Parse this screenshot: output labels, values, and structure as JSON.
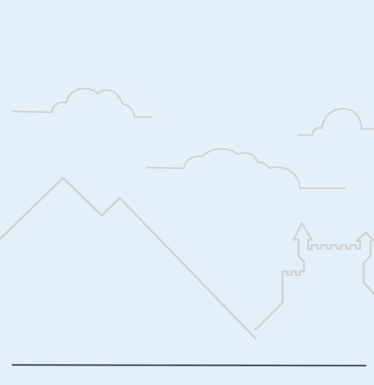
{
  "scene": {
    "background": "#e4f0f9",
    "outline_color": "#d3d3d3",
    "ground_color": "#4a5560",
    "elements": [
      "cloud-icon",
      "cloud-icon",
      "cloud-icon",
      "mountain-icon",
      "castle-icon",
      "ground-line"
    ]
  }
}
